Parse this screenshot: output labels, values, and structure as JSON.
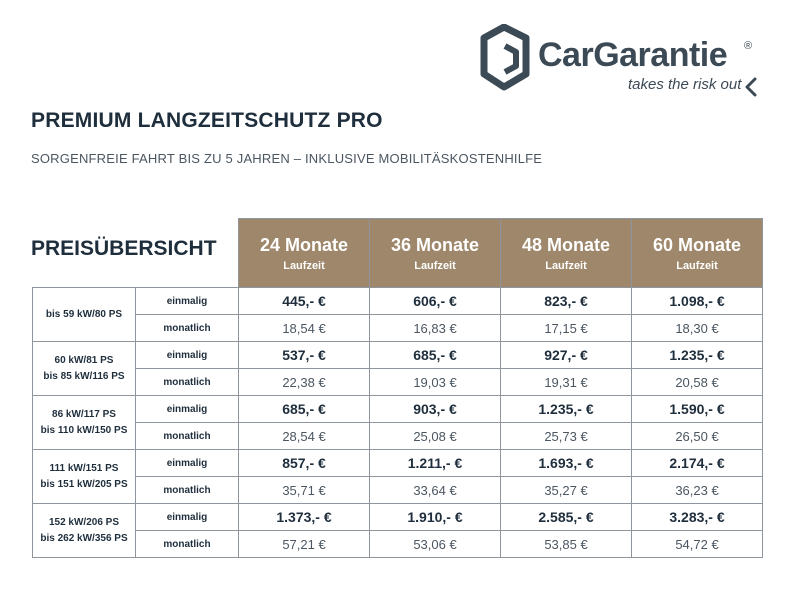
{
  "brand": {
    "name": "CarGarantie",
    "registered": "®",
    "tagline": "takes the risk out",
    "color": "#3c4a56"
  },
  "title": "PREMIUM LANGZEITSCHUTZ PRO",
  "subtitle": "SORGENFREIE FAHRT BIS ZU 5 JAHREN – INKLUSIVE MOBILITÄSKOSTENHILFE",
  "table": {
    "title": "PREISÜBERSICHT",
    "header_color": "#9e876a",
    "columns": [
      {
        "label": "24 Monate",
        "sub": "Laufzeit"
      },
      {
        "label": "36 Monate",
        "sub": "Laufzeit"
      },
      {
        "label": "48 Monate",
        "sub": "Laufzeit"
      },
      {
        "label": "60 Monate",
        "sub": "Laufzeit"
      }
    ],
    "type_once": "einmalig",
    "type_monthly": "monatlich",
    "groups": [
      {
        "power": [
          "bis 59 kW/80 PS"
        ],
        "once": [
          "445,- €",
          "606,- €",
          "823,- €",
          "1.098,- €"
        ],
        "monthly": [
          "18,54 €",
          "16,83 €",
          "17,15 €",
          "18,30 €"
        ]
      },
      {
        "power": [
          "60 kW/81 PS",
          "bis 85 kW/116 PS"
        ],
        "once": [
          "537,- €",
          "685,- €",
          "927,- €",
          "1.235,- €"
        ],
        "monthly": [
          "22,38 €",
          "19,03 €",
          "19,31 €",
          "20,58 €"
        ]
      },
      {
        "power": [
          "86 kW/117 PS",
          "bis 110 kW/150 PS"
        ],
        "once": [
          "685,- €",
          "903,- €",
          "1.235,- €",
          "1.590,- €"
        ],
        "monthly": [
          "28,54 €",
          "25,08 €",
          "25,73 €",
          "26,50 €"
        ]
      },
      {
        "power": [
          "111 kW/151 PS",
          "bis 151 kW/205 PS"
        ],
        "once": [
          "857,- €",
          "1.211,- €",
          "1.693,- €",
          "2.174,- €"
        ],
        "monthly": [
          "35,71 €",
          "33,64 €",
          "35,27 €",
          "36,23 €"
        ]
      },
      {
        "power": [
          "152 kW/206 PS",
          "bis 262 kW/356 PS"
        ],
        "once": [
          "1.373,- €",
          "1.910,- €",
          "2.585,- €",
          "3.283,- €"
        ],
        "monthly": [
          "57,21 €",
          "53,06 €",
          "53,85 €",
          "54,72 €"
        ]
      }
    ]
  }
}
